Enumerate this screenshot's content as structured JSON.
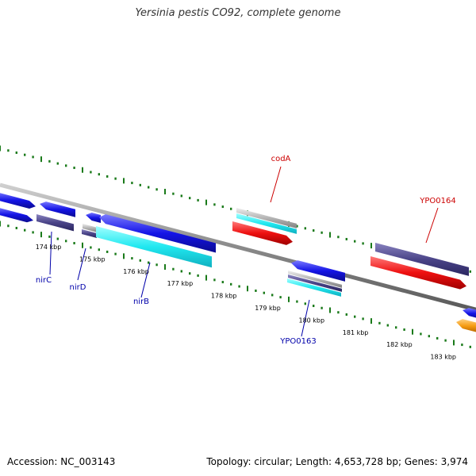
{
  "title": "Yersinia pestis CO92, complete genome",
  "footer": {
    "accession": "Accession: NC_003143",
    "topology": "Topology: circular; Length: 4,653,728 bp; Genes: 3,974"
  },
  "colors": {
    "backbone": "#8a8a8a",
    "tick": "#1a7a1a",
    "label_red": "#cc0000",
    "label_blue": "#0000aa",
    "gene_blue": "#1414e6",
    "gene_navy": "#4a4488",
    "gene_cyan": "#20e8f0",
    "gene_red": "#ee1010",
    "gene_orange": "#f59a10",
    "gene_gray": "#b4b4b4"
  },
  "scale": {
    "unit": "kbp",
    "labels": [
      {
        "kbp": 174,
        "text": "174 kbp"
      },
      {
        "kbp": 175,
        "text": "175 kbp"
      },
      {
        "kbp": 176,
        "text": "176 kbp"
      },
      {
        "kbp": 177,
        "text": "177 kbp"
      },
      {
        "kbp": 178,
        "text": "178 kbp"
      },
      {
        "kbp": 179,
        "text": "179 kbp"
      },
      {
        "kbp": 180,
        "text": "180 kbp"
      },
      {
        "kbp": 181,
        "text": "181 kbp"
      },
      {
        "kbp": 182,
        "text": "182 kbp"
      },
      {
        "kbp": 183,
        "text": "183 kbp"
      }
    ]
  },
  "gene_labels": [
    {
      "name": "codA",
      "color": "red"
    },
    {
      "name": "YPO0164",
      "color": "red"
    },
    {
      "name": "nirC",
      "color": "blue"
    },
    {
      "name": "nirD",
      "color": "blue"
    },
    {
      "name": "nirB",
      "color": "blue"
    },
    {
      "name": "YPO0163",
      "color": "blue"
    }
  ]
}
